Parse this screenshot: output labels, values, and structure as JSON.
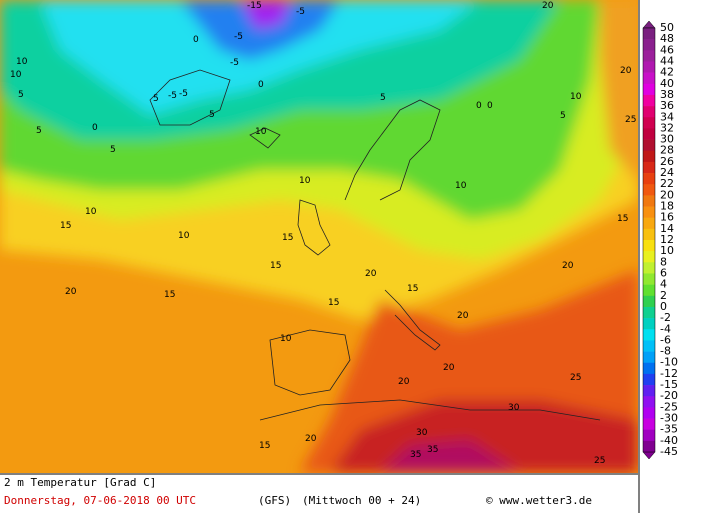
{
  "map": {
    "labels": [
      "10",
      "5",
      "5",
      "0",
      "5",
      "5",
      "-5",
      "-5",
      "-5",
      "-15",
      "-5",
      "-5",
      "0",
      "5",
      "10",
      "10",
      "10",
      "10",
      "15",
      "20",
      "15",
      "15",
      "15",
      "15",
      "15",
      "20",
      "20",
      "20",
      "30",
      "30",
      "35",
      "35",
      "25",
      "25",
      "5",
      "10",
      "20",
      "25",
      "15",
      "20",
      "20",
      "0",
      "0",
      "5",
      "10",
      "20",
      "20",
      "15",
      "10",
      "10",
      "0"
    ]
  },
  "colorbar": {
    "ticks": [
      "50",
      "48",
      "46",
      "44",
      "42",
      "40",
      "38",
      "36",
      "34",
      "32",
      "30",
      "28",
      "26",
      "24",
      "22",
      "20",
      "18",
      "16",
      "14",
      "12",
      "10",
      "8",
      "6",
      "4",
      "2",
      "0",
      "-2",
      "-4",
      "-6",
      "-8",
      "-10",
      "-12",
      "-15",
      "-20",
      "-25",
      "-30",
      "-35",
      "-40",
      "-45"
    ],
    "colors": [
      "#7a2080",
      "#8a208e",
      "#9c209c",
      "#b018b0",
      "#c810c8",
      "#e000e0",
      "#f000a0",
      "#e00070",
      "#d00050",
      "#c00040",
      "#b01030",
      "#c01818",
      "#d82818",
      "#e84010",
      "#f05810",
      "#f07810",
      "#f89010",
      "#f8a810",
      "#f8c010",
      "#f8e010",
      "#e8f020",
      "#c0f030",
      "#90e830",
      "#60e030",
      "#30d050",
      "#10d090",
      "#00d0c0",
      "#00e0f0",
      "#00c0f8",
      "#00a0f8",
      "#0070f0",
      "#2040f0",
      "#6020f0",
      "#9010f0",
      "#b000f0",
      "#c800e0",
      "#a000c0",
      "#800090"
    ]
  },
  "footer": {
    "variable": "2 m Temperatur [Grad C]",
    "date": "Donnerstag, 07-06-2018  00 UTC",
    "model": "(GFS)",
    "run": "(Mittwoch 00 + 24)",
    "credit": "© www.wetter3.de"
  }
}
